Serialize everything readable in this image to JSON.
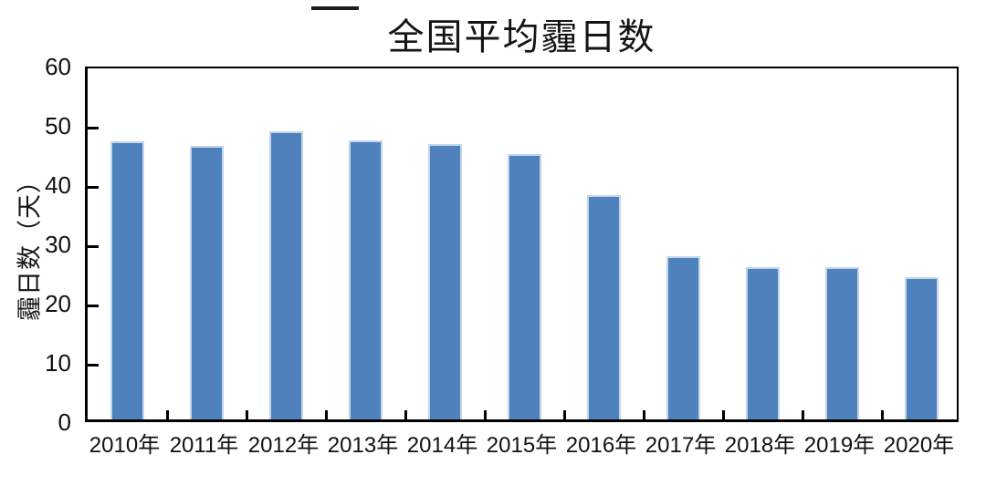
{
  "chart_data": {
    "type": "bar",
    "title": "全国平均霾日数",
    "ylabel": "霾日数（天）",
    "xlabel": "",
    "categories": [
      "2010年",
      "2011年",
      "2012年",
      "2013年",
      "2014年",
      "2015年",
      "2016年",
      "2017年",
      "2018年",
      "2019年",
      "2020年"
    ],
    "values": [
      46.9,
      46.2,
      48.6,
      47.0,
      46.5,
      44.8,
      37.9,
      27.5,
      25.7,
      25.7,
      24.0
    ],
    "ylim": [
      0,
      60
    ],
    "yticks": [
      0,
      10,
      20,
      30,
      40,
      50,
      60
    ],
    "grid": false,
    "legend": null,
    "bar_color": "#4f81bd",
    "bar_border_color": "#c3d5ea",
    "axis_color": "#000000",
    "background_color": "#ffffff"
  }
}
